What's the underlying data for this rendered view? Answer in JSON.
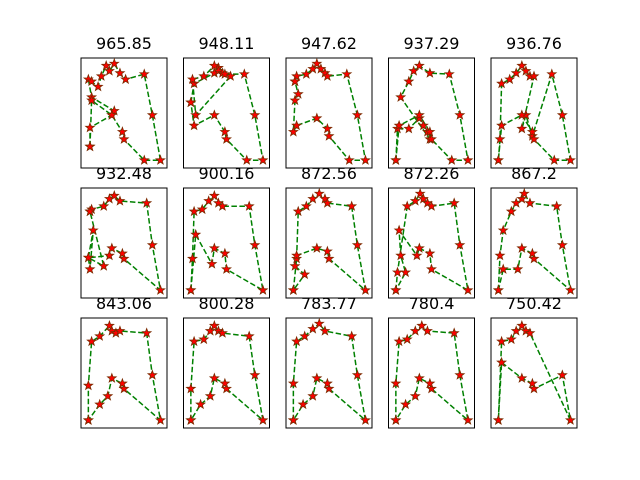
{
  "figure": {
    "colors": {
      "route": "#008000",
      "marker_fill": "#ff0000",
      "marker_edge": "#7a2b00"
    },
    "rows": 3,
    "cols": 5
  },
  "chart_data": [
    {
      "type": "line",
      "title": "965.85",
      "marker": "star",
      "line_style": "dashed",
      "axis_ticks": false,
      "x": [
        0.08,
        0.08,
        0.35,
        0.38,
        0.1,
        0.06,
        0.1,
        0.18,
        0.22,
        0.28,
        0.32,
        0.38,
        0.45,
        0.52,
        0.75,
        0.85,
        0.95,
        0.75,
        0.5,
        0.48,
        0.35,
        0.1,
        0.08
      ],
      "y": [
        0.18,
        0.36,
        0.48,
        0.52,
        0.65,
        0.82,
        0.8,
        0.75,
        0.85,
        0.95,
        0.9,
        0.97,
        0.88,
        0.82,
        0.87,
        0.48,
        0.05,
        0.05,
        0.25,
        0.32,
        0.48,
        0.62,
        0.18
      ]
    },
    {
      "type": "line",
      "title": "948.11",
      "marker": "star",
      "line_style": "dashed",
      "axis_ticks": false,
      "x": [
        0.06,
        0.1,
        0.35,
        0.4,
        0.55,
        0.12,
        0.08,
        0.22,
        0.35,
        0.4,
        0.45,
        0.48,
        0.72,
        0.85,
        0.95,
        0.75,
        0.5,
        0.48,
        0.35,
        0.1,
        0.06
      ],
      "y": [
        0.6,
        0.78,
        0.88,
        0.93,
        0.85,
        0.48,
        0.82,
        0.85,
        0.95,
        0.9,
        0.88,
        0.87,
        0.87,
        0.48,
        0.05,
        0.05,
        0.25,
        0.32,
        0.48,
        0.38,
        0.6
      ]
    },
    {
      "type": "line",
      "title": "947.62",
      "marker": "star",
      "line_style": "dashed",
      "axis_ticks": false,
      "x": [
        0.08,
        0.1,
        0.22,
        0.3,
        0.35,
        0.4,
        0.45,
        0.48,
        0.72,
        0.85,
        0.95,
        0.75,
        0.5,
        0.48,
        0.35,
        0.1,
        0.06,
        0.08,
        0.12,
        0.08
      ],
      "y": [
        0.8,
        0.85,
        0.87,
        0.92,
        0.97,
        0.92,
        0.88,
        0.85,
        0.87,
        0.48,
        0.05,
        0.05,
        0.28,
        0.35,
        0.45,
        0.38,
        0.32,
        0.62,
        0.68,
        0.8
      ]
    },
    {
      "type": "line",
      "title": "937.29",
      "marker": "star",
      "line_style": "dashed",
      "axis_ticks": false,
      "x": [
        0.06,
        0.08,
        0.22,
        0.35,
        0.4,
        0.45,
        0.48,
        0.12,
        0.22,
        0.28,
        0.35,
        0.48,
        0.72,
        0.85,
        0.95,
        0.75,
        0.5,
        0.48,
        0.35,
        0.1,
        0.06
      ],
      "y": [
        0.05,
        0.35,
        0.35,
        0.45,
        0.38,
        0.32,
        0.25,
        0.65,
        0.8,
        0.9,
        0.95,
        0.88,
        0.87,
        0.48,
        0.05,
        0.05,
        0.25,
        0.32,
        0.48,
        0.38,
        0.05
      ]
    },
    {
      "type": "line",
      "title": "936.76",
      "marker": "star",
      "line_style": "dashed",
      "axis_ticks": false,
      "x": [
        0.06,
        0.08,
        0.1,
        0.2,
        0.28,
        0.35,
        0.4,
        0.45,
        0.5,
        0.35,
        0.4,
        0.48,
        0.72,
        0.85,
        0.95,
        0.75,
        0.5,
        0.48,
        0.35,
        0.1,
        0.06
      ],
      "y": [
        0.05,
        0.25,
        0.78,
        0.82,
        0.88,
        0.95,
        0.9,
        0.85,
        0.85,
        0.35,
        0.48,
        0.28,
        0.87,
        0.48,
        0.05,
        0.05,
        0.25,
        0.32,
        0.48,
        0.38,
        0.05
      ]
    },
    {
      "type": "line",
      "title": "932.48",
      "marker": "star",
      "line_style": "dashed",
      "axis_ticks": false,
      "x": [
        0.08,
        0.1,
        0.25,
        0.32,
        0.38,
        0.45,
        0.78,
        0.85,
        0.95,
        0.5,
        0.48,
        0.35,
        0.32,
        0.06,
        0.08,
        0.12,
        0.06,
        0.25,
        0.08
      ],
      "y": [
        0.8,
        0.82,
        0.85,
        0.92,
        0.95,
        0.9,
        0.88,
        0.48,
        0.05,
        0.35,
        0.4,
        0.45,
        0.38,
        0.36,
        0.25,
        0.62,
        0.36,
        0.28,
        0.8
      ]
    },
    {
      "type": "line",
      "title": "900.16",
      "marker": "star",
      "line_style": "dashed",
      "axis_ticks": false,
      "x": [
        0.06,
        0.08,
        0.1,
        0.2,
        0.28,
        0.35,
        0.4,
        0.45,
        0.78,
        0.85,
        0.95,
        0.5,
        0.48,
        0.35,
        0.32,
        0.12,
        0.06
      ],
      "y": [
        0.05,
        0.35,
        0.8,
        0.82,
        0.9,
        0.95,
        0.88,
        0.85,
        0.85,
        0.48,
        0.05,
        0.25,
        0.4,
        0.45,
        0.3,
        0.58,
        0.05
      ]
    },
    {
      "type": "line",
      "title": "872.56",
      "marker": "star",
      "line_style": "dashed",
      "axis_ticks": false,
      "x": [
        0.06,
        0.1,
        0.12,
        0.22,
        0.3,
        0.38,
        0.45,
        0.48,
        0.78,
        0.85,
        0.95,
        0.5,
        0.48,
        0.35,
        0.1,
        0.08,
        0.2,
        0.06
      ],
      "y": [
        0.05,
        0.35,
        0.8,
        0.85,
        0.92,
        0.97,
        0.92,
        0.88,
        0.85,
        0.48,
        0.05,
        0.35,
        0.42,
        0.45,
        0.38,
        0.28,
        0.2,
        0.05
      ]
    },
    {
      "type": "line",
      "title": "872.26",
      "marker": "star",
      "line_style": "dashed",
      "axis_ticks": false,
      "x": [
        0.06,
        0.08,
        0.2,
        0.3,
        0.36,
        0.4,
        0.45,
        0.5,
        0.78,
        0.85,
        0.95,
        0.5,
        0.48,
        0.35,
        0.32,
        0.1,
        0.12,
        0.18,
        0.06
      ],
      "y": [
        0.05,
        0.22,
        0.85,
        0.9,
        0.97,
        0.92,
        0.88,
        0.85,
        0.88,
        0.48,
        0.05,
        0.25,
        0.4,
        0.45,
        0.38,
        0.62,
        0.38,
        0.22,
        0.05
      ]
    },
    {
      "type": "line",
      "title": "867.2",
      "marker": "star",
      "line_style": "dashed",
      "axis_ticks": false,
      "x": [
        0.06,
        0.08,
        0.12,
        0.22,
        0.28,
        0.35,
        0.38,
        0.45,
        0.78,
        0.85,
        0.95,
        0.5,
        0.48,
        0.35,
        0.3,
        0.12,
        0.06
      ],
      "y": [
        0.05,
        0.38,
        0.62,
        0.8,
        0.88,
        0.92,
        0.97,
        0.88,
        0.85,
        0.48,
        0.05,
        0.35,
        0.4,
        0.45,
        0.25,
        0.25,
        0.05
      ]
    },
    {
      "type": "line",
      "title": "843.06",
      "marker": "star",
      "line_style": "dashed",
      "axis_ticks": false,
      "x": [
        0.06,
        0.06,
        0.1,
        0.2,
        0.32,
        0.35,
        0.4,
        0.45,
        0.78,
        0.85,
        0.95,
        0.5,
        0.48,
        0.35,
        0.3,
        0.2,
        0.06
      ],
      "y": [
        0.05,
        0.38,
        0.8,
        0.85,
        0.95,
        0.9,
        0.88,
        0.9,
        0.88,
        0.48,
        0.05,
        0.35,
        0.4,
        0.45,
        0.28,
        0.2,
        0.05
      ]
    },
    {
      "type": "line",
      "title": "800.28",
      "marker": "star",
      "line_style": "dashed",
      "axis_ticks": false,
      "x": [
        0.06,
        0.06,
        0.1,
        0.22,
        0.3,
        0.35,
        0.4,
        0.45,
        0.78,
        0.85,
        0.95,
        0.5,
        0.48,
        0.35,
        0.3,
        0.18,
        0.06
      ],
      "y": [
        0.05,
        0.35,
        0.8,
        0.82,
        0.9,
        0.95,
        0.9,
        0.88,
        0.85,
        0.48,
        0.05,
        0.35,
        0.4,
        0.45,
        0.28,
        0.2,
        0.05
      ]
    },
    {
      "type": "line",
      "title": "783.77",
      "marker": "star",
      "line_style": "dashed",
      "axis_ticks": false,
      "x": [
        0.06,
        0.06,
        0.1,
        0.2,
        0.3,
        0.38,
        0.45,
        0.78,
        0.85,
        0.95,
        0.5,
        0.48,
        0.35,
        0.3,
        0.18,
        0.06
      ],
      "y": [
        0.05,
        0.4,
        0.8,
        0.85,
        0.92,
        0.97,
        0.9,
        0.85,
        0.48,
        0.05,
        0.35,
        0.4,
        0.45,
        0.28,
        0.2,
        0.05
      ]
    },
    {
      "type": "line",
      "title": "780.4",
      "marker": "star",
      "line_style": "dashed",
      "axis_ticks": false,
      "x": [
        0.06,
        0.06,
        0.1,
        0.2,
        0.3,
        0.38,
        0.45,
        0.78,
        0.85,
        0.95,
        0.5,
        0.48,
        0.35,
        0.3,
        0.18,
        0.06
      ],
      "y": [
        0.05,
        0.4,
        0.8,
        0.82,
        0.9,
        0.95,
        0.9,
        0.88,
        0.48,
        0.05,
        0.35,
        0.4,
        0.45,
        0.28,
        0.2,
        0.05
      ]
    },
    {
      "type": "line",
      "title": "750.42",
      "marker": "star",
      "line_style": "dashed",
      "axis_ticks": false,
      "x": [
        0.06,
        0.1,
        0.22,
        0.28,
        0.35,
        0.4,
        0.45,
        0.95,
        0.85,
        0.5,
        0.48,
        0.35,
        0.1,
        0.06
      ],
      "y": [
        0.05,
        0.8,
        0.82,
        0.9,
        0.95,
        0.9,
        0.88,
        0.05,
        0.48,
        0.35,
        0.4,
        0.45,
        0.6,
        0.05
      ]
    }
  ]
}
